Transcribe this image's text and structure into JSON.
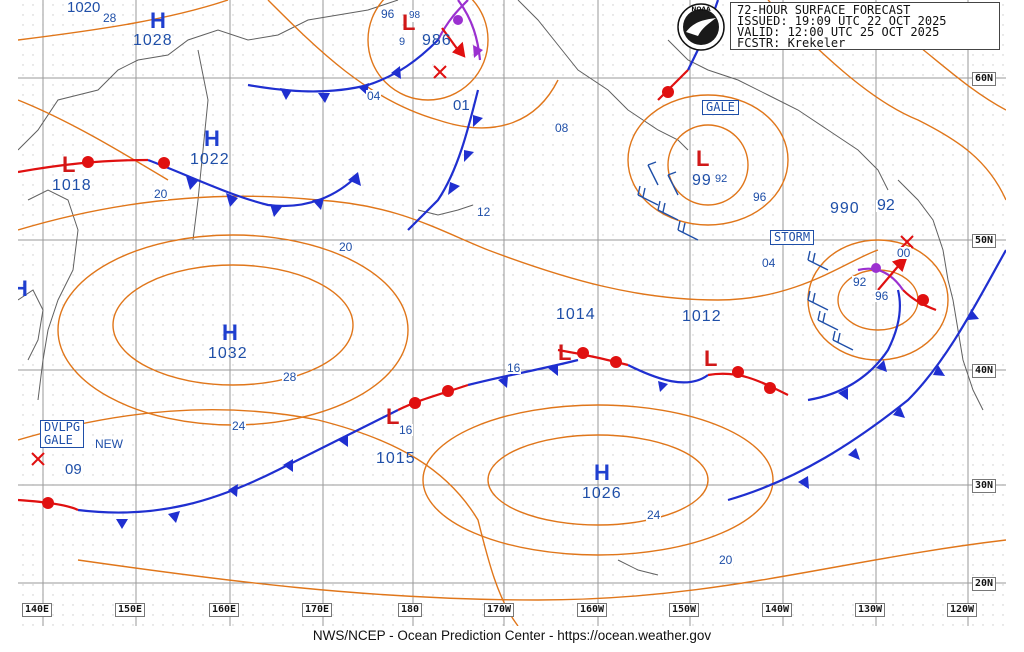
{
  "header": {
    "line1": "72-HOUR SURFACE FORECAST",
    "line2": "ISSUED: 19:09 UTC 22 OCT 2025",
    "line3": "VALID:  12:00 UTC 25 OCT 2025",
    "line4": "FCSTR:  Krekeler"
  },
  "logo_text": "NOAA",
  "footer": "NWS/NCEP - Ocean Prediction Center - https://ocean.weather.gov",
  "lon_labels": [
    "140E",
    "150E",
    "160E",
    "170E",
    "180",
    "170W",
    "160W",
    "150W",
    "140W",
    "130W",
    "120W"
  ],
  "lat_labels": [
    "60N",
    "50N",
    "40N",
    "30N",
    "20N"
  ],
  "highs": [
    {
      "symbol": "H",
      "value": "1028"
    },
    {
      "symbol": "H",
      "value": "1022"
    },
    {
      "symbol": "H",
      "value": "1032"
    },
    {
      "symbol": "H",
      "value": "1026"
    },
    {
      "symbol": "H",
      "value": ""
    }
  ],
  "lows": [
    {
      "symbol": "L",
      "value": "1018"
    },
    {
      "symbol": "L",
      "value": "986"
    },
    {
      "symbol": "L",
      "value": "99"
    },
    {
      "symbol": "L",
      "value": "1014"
    },
    {
      "symbol": "L",
      "value": "1012"
    },
    {
      "symbol": "L",
      "value": "1015"
    },
    {
      "symbol": "L",
      "value": "990"
    }
  ],
  "warnings": [
    "GALE",
    "STORM",
    "DVLPG",
    "GALE",
    "NEW"
  ],
  "isobar_labels": [
    "1020",
    "28",
    "04",
    "01",
    "08",
    "20",
    "12",
    "96",
    "92",
    "20",
    "04",
    "28",
    "24",
    "16",
    "16",
    "24",
    "20",
    "09",
    "92",
    "96",
    "00",
    "92",
    "96",
    "98",
    "9"
  ],
  "colors": {
    "isobar": "#e0761a",
    "cold_front": "#1f2fd0",
    "warm_front": "#e01010",
    "occluded": "#9b30d0",
    "grid": "#9a9a9a",
    "land": "#606060",
    "text_blue": "#1f4fa8"
  }
}
